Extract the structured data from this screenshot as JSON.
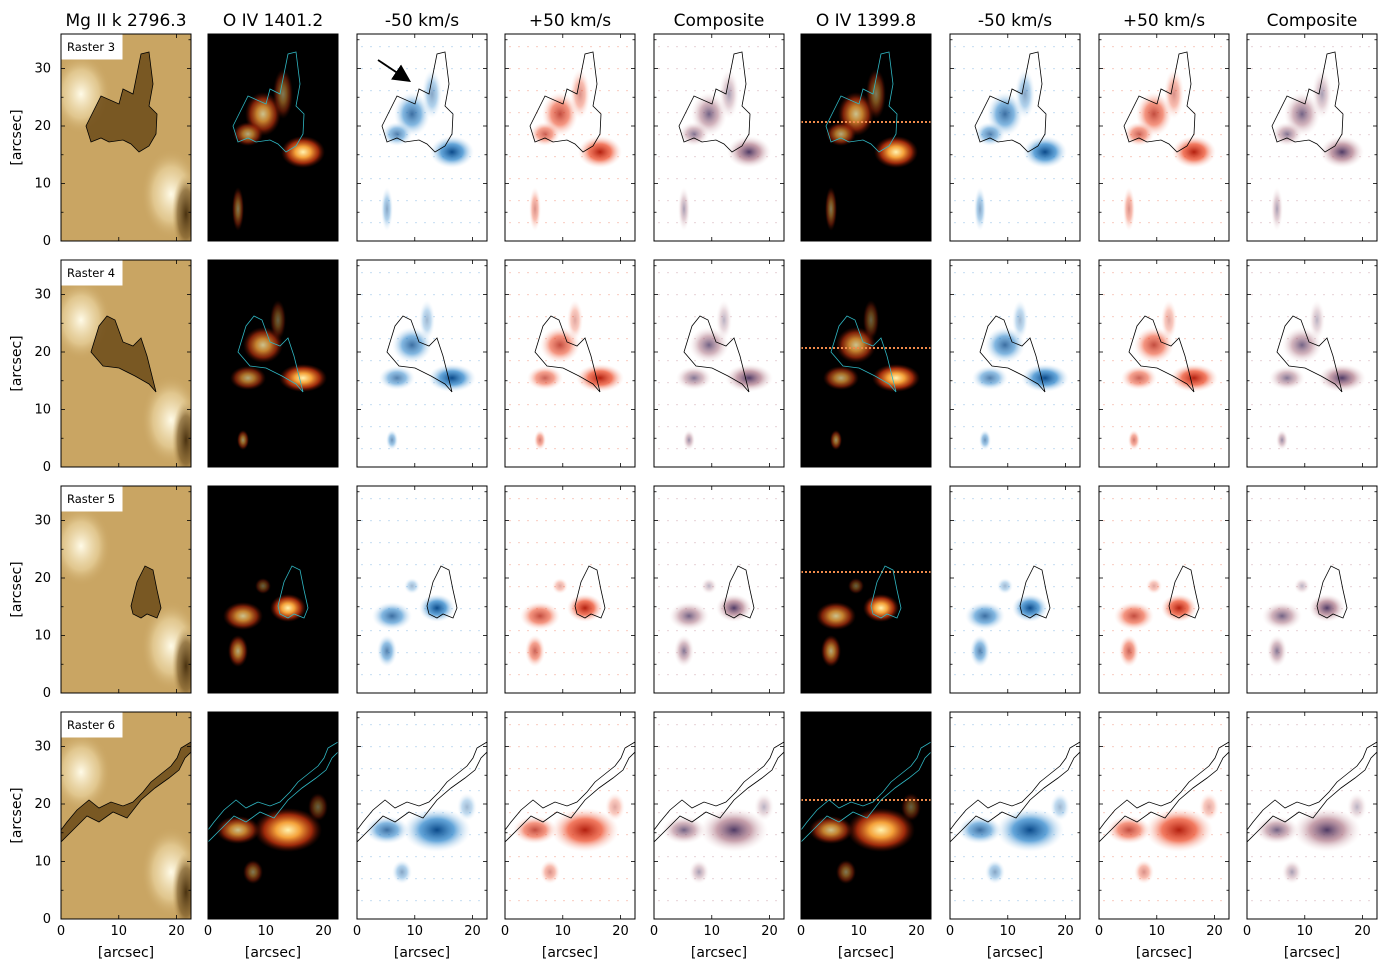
{
  "figure": {
    "column_titles": [
      "Mg II k 2796.3",
      "O IV 1401.2",
      "-50 km/s",
      "+50 km/s",
      "Composite",
      "O IV 1399.8",
      "-50 km/s",
      "+50 km/s",
      "Composite"
    ],
    "row_labels": [
      "Raster 3",
      "Raster 4",
      "Raster 5",
      "Raster 6"
    ],
    "x_axis_label": "[arcsec]",
    "y_axis_label": "[arcsec]",
    "x_ticks": [
      "0",
      "10",
      "20"
    ],
    "y_ticks": [
      "0",
      "10",
      "20",
      "30"
    ],
    "x_range_arcsec": [
      0,
      22.5
    ],
    "y_range_arcsec": [
      0,
      36
    ],
    "panel_colormaps": [
      "sdo-aia-brown",
      "black-red-hot",
      "white-blue",
      "white-red",
      "white-red-blue-composite",
      "black-red-hot",
      "white-blue",
      "white-red",
      "white-red-blue-composite"
    ],
    "colors": {
      "mgii_base": "#c9a563",
      "hot_background": "#000000",
      "blue_feature": "#1f6fb5",
      "red_feature": "#e5402a",
      "composite_purple": "#6a4c7a",
      "contour_dark": "#000000",
      "contour_cyan": "#2fb6c2"
    },
    "annotation": "arrow-marker"
  }
}
